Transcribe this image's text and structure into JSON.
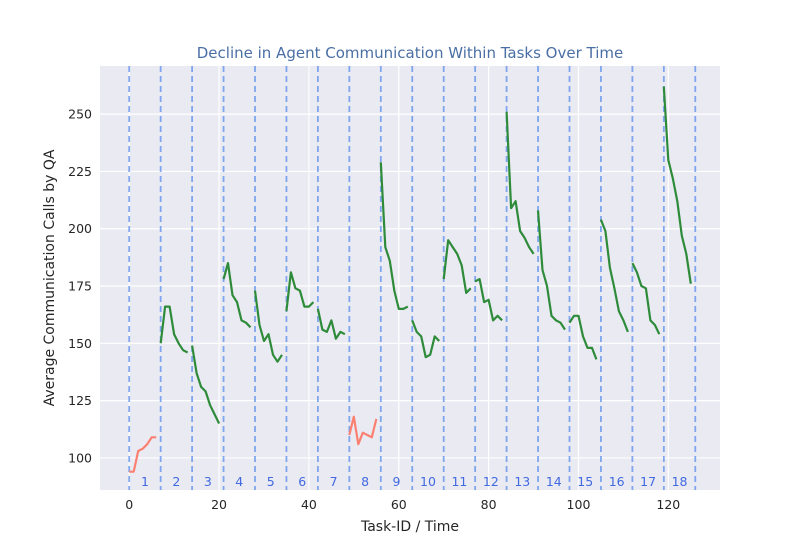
{
  "chart_data": {
    "type": "line",
    "title": "Decline in Agent Communication Within Tasks Over Time",
    "xlabel": "Task-ID / Time",
    "ylabel": "Average Communication Calls by QA",
    "xlim": [
      -6.5,
      131.5
    ],
    "ylim": [
      86,
      271
    ],
    "xticks": [
      0,
      20,
      40,
      60,
      80,
      100,
      120
    ],
    "yticks": [
      100,
      125,
      150,
      175,
      200,
      225,
      250
    ],
    "grid": true,
    "legend": "none",
    "task_boundaries": [
      0,
      7,
      14,
      21,
      28,
      35,
      42,
      49,
      56,
      63,
      70,
      77,
      84,
      91,
      98,
      105,
      112,
      119,
      126
    ],
    "task_labels": [
      "1",
      "2",
      "3",
      "4",
      "5",
      "6",
      "7",
      "8",
      "9",
      "10",
      "11",
      "12",
      "13",
      "14",
      "15",
      "16",
      "17",
      "18"
    ],
    "colors": {
      "increasing": "#fa8072",
      "decreasing": "#2e8b3a",
      "boundary": "#6495ed",
      "label": "#4169e1",
      "title": "#4a6fa5",
      "background": "#eaeaf2",
      "grid": "#ffffff"
    },
    "series": [
      {
        "task": "1",
        "trend": "increasing",
        "x": [
          0,
          1,
          2,
          3,
          4,
          5,
          6
        ],
        "y": [
          94,
          94,
          103,
          104,
          106,
          109,
          109
        ]
      },
      {
        "task": "2",
        "trend": "decreasing",
        "x": [
          7,
          8,
          9,
          10,
          11,
          12,
          13
        ],
        "y": [
          150,
          166,
          166,
          154,
          150,
          147,
          146
        ]
      },
      {
        "task": "3",
        "trend": "decreasing",
        "x": [
          14,
          15,
          16,
          17,
          18,
          19,
          20
        ],
        "y": [
          149,
          137,
          131,
          129,
          123,
          119,
          115
        ]
      },
      {
        "task": "4",
        "trend": "decreasing",
        "x": [
          21,
          22,
          23,
          24,
          25,
          26,
          27
        ],
        "y": [
          178,
          185,
          171,
          168,
          160,
          159,
          157
        ]
      },
      {
        "task": "5",
        "trend": "decreasing",
        "x": [
          28,
          29,
          30,
          31,
          32,
          33,
          34
        ],
        "y": [
          173,
          158,
          151,
          154,
          145,
          142,
          145
        ]
      },
      {
        "task": "6",
        "trend": "decreasing",
        "x": [
          35,
          36,
          37,
          38,
          39,
          40,
          41
        ],
        "y": [
          164,
          181,
          174,
          173,
          166,
          166,
          168
        ]
      },
      {
        "task": "7",
        "trend": "decreasing",
        "x": [
          42,
          43,
          44,
          45,
          46,
          47,
          48
        ],
        "y": [
          165,
          156,
          155,
          160,
          152,
          155,
          154
        ]
      },
      {
        "task": "8",
        "trend": "increasing",
        "x": [
          49,
          50,
          51,
          52,
          53,
          54,
          55
        ],
        "y": [
          110,
          118,
          106,
          111,
          110,
          109,
          117
        ]
      },
      {
        "task": "9",
        "trend": "decreasing",
        "x": [
          56,
          57,
          58,
          59,
          60,
          61,
          62
        ],
        "y": [
          229,
          192,
          186,
          173,
          165,
          165,
          166
        ]
      },
      {
        "task": "10",
        "trend": "decreasing",
        "x": [
          63,
          64,
          65,
          66,
          67,
          68,
          69
        ],
        "y": [
          160,
          155,
          153,
          144,
          145,
          153,
          151
        ]
      },
      {
        "task": "11",
        "trend": "decreasing",
        "x": [
          70,
          71,
          72,
          73,
          74,
          75,
          76
        ],
        "y": [
          178,
          195,
          192,
          189,
          184,
          172,
          174
        ]
      },
      {
        "task": "12",
        "trend": "decreasing",
        "x": [
          77,
          78,
          79,
          80,
          81,
          82,
          83
        ],
        "y": [
          177,
          178,
          168,
          169,
          160,
          162,
          160
        ]
      },
      {
        "task": "13",
        "trend": "decreasing",
        "x": [
          84,
          85,
          86,
          87,
          88,
          89,
          90
        ],
        "y": [
          251,
          209,
          212,
          199,
          196,
          192,
          189
        ]
      },
      {
        "task": "14",
        "trend": "decreasing",
        "x": [
          91,
          92,
          93,
          94,
          95,
          96,
          97
        ],
        "y": [
          208,
          182,
          175,
          162,
          160,
          159,
          156
        ]
      },
      {
        "task": "15",
        "trend": "decreasing",
        "x": [
          98,
          99,
          100,
          101,
          102,
          103,
          104
        ],
        "y": [
          159,
          162,
          162,
          153,
          148,
          148,
          143
        ]
      },
      {
        "task": "16",
        "trend": "decreasing",
        "x": [
          105,
          106,
          107,
          108,
          109,
          110,
          111
        ],
        "y": [
          204,
          199,
          183,
          174,
          164,
          160,
          155
        ]
      },
      {
        "task": "17",
        "trend": "decreasing",
        "x": [
          112,
          113,
          114,
          115,
          116,
          117,
          118
        ],
        "y": [
          185,
          181,
          175,
          174,
          160,
          158,
          154
        ]
      },
      {
        "task": "18",
        "trend": "decreasing",
        "x": [
          119,
          120,
          121,
          122,
          123,
          124,
          125
        ],
        "y": [
          262,
          230,
          222,
          212,
          197,
          189,
          176
        ]
      }
    ]
  }
}
